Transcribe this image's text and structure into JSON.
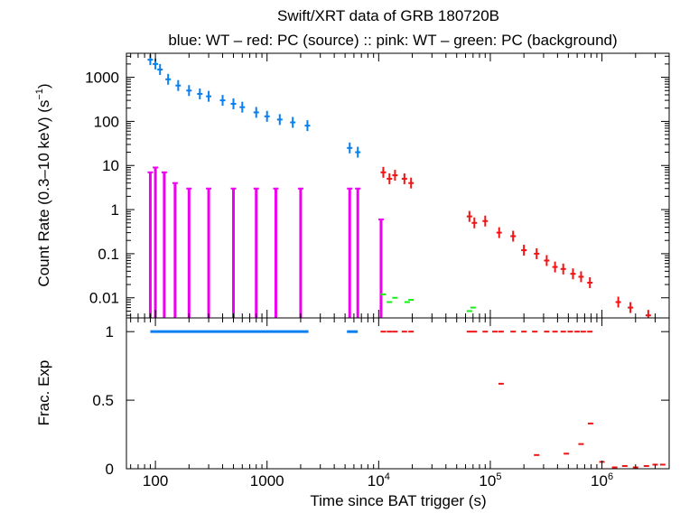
{
  "chart_data": [
    {
      "type": "scatter",
      "panel": "count-rate",
      "title": "Swift/XRT data of GRB 180720B",
      "subtitle": "blue: WT – red: PC (source) :: pink: WT – green: PC (background)",
      "ylabel": "Count Rate (0.3–10 keV) (s⁻¹)",
      "yscale": "log",
      "xscale": "log",
      "xlim": [
        55,
        4000000
      ],
      "ylim": [
        0.0035,
        3500
      ],
      "yticks": [
        {
          "v": 1000,
          "label": "1000"
        },
        {
          "v": 100,
          "label": "100"
        },
        {
          "v": 10,
          "label": "10"
        },
        {
          "v": 1,
          "label": "1"
        },
        {
          "v": 0.1,
          "label": "0.1"
        },
        {
          "v": 0.01,
          "label": "0.01"
        }
      ],
      "series": [
        {
          "color": "#0a7ff0",
          "mode": "WT",
          "role": "source",
          "x": [
            90,
            100,
            110,
            130,
            160,
            200,
            250,
            300,
            400,
            500,
            600,
            800,
            1000,
            1300,
            1700,
            2300,
            5500,
            6500
          ],
          "y": [
            2500,
            2000,
            1500,
            900,
            650,
            500,
            420,
            370,
            300,
            250,
            210,
            160,
            130,
            110,
            95,
            80,
            25,
            20
          ]
        },
        {
          "color": "#f000f0",
          "mode": "WT",
          "role": "background",
          "x": [
            90,
            100,
            120,
            150,
            200,
            300,
            500,
            800,
            1200,
            2000,
            5500,
            6500,
            10500
          ],
          "y": [
            7,
            9,
            7,
            4,
            3,
            3,
            3,
            3,
            3,
            3,
            3,
            3,
            0.6
          ]
        },
        {
          "color": "#f01414",
          "mode": "PC",
          "role": "source",
          "x": [
            11000,
            12500,
            14000,
            17000,
            19500,
            65000,
            72000,
            90000,
            120000,
            160000,
            200000,
            260000,
            320000,
            380000,
            450000,
            550000,
            650000,
            780000,
            1400000,
            1800000,
            2600000
          ],
          "y": [
            7,
            5,
            6,
            5,
            4,
            0.7,
            0.5,
            0.55,
            0.3,
            0.25,
            0.12,
            0.1,
            0.07,
            0.05,
            0.045,
            0.035,
            0.03,
            0.022,
            0.008,
            0.006,
            0.004
          ]
        },
        {
          "color": "#14f014",
          "mode": "PC",
          "role": "background",
          "x": [
            11000,
            12500,
            14000,
            18000,
            19500,
            65000,
            70000
          ],
          "y": [
            0.012,
            0.008,
            0.01,
            0.008,
            0.009,
            0.005,
            0.006
          ]
        }
      ]
    },
    {
      "type": "scatter",
      "panel": "fractional-exposure",
      "ylabel": "Frac. Exp",
      "xlabel": "Time since BAT trigger (s)",
      "xscale": "log",
      "xlim": [
        55,
        4000000
      ],
      "ylim": [
        0,
        1.1
      ],
      "yticks": [
        {
          "v": 1,
          "label": "1"
        },
        {
          "v": 0.5,
          "label": "0.5"
        },
        {
          "v": 0,
          "label": "0"
        }
      ],
      "xticks": [
        {
          "v": 100,
          "label": "100",
          "sup": ""
        },
        {
          "v": 1000,
          "label": "1000",
          "sup": ""
        },
        {
          "v": 10000,
          "label": "10",
          "sup": "4"
        },
        {
          "v": 100000,
          "label": "10",
          "sup": "5"
        },
        {
          "v": 1000000,
          "label": "10",
          "sup": "6"
        }
      ],
      "segments": [
        {
          "color": "#0a7ff0",
          "x0": 90,
          "x1": 2350,
          "y": 1.0
        },
        {
          "color": "#0a7ff0",
          "x0": 5200,
          "x1": 6500,
          "y": 1.0
        }
      ],
      "series": [
        {
          "color": "#f01414",
          "x": [
            11000,
            12500,
            14000,
            17000,
            19500,
            65000,
            72000,
            90000,
            110000,
            125000,
            160000,
            200000,
            250000,
            320000,
            380000,
            450000,
            520000,
            600000,
            680000,
            780000,
            125000,
            260000,
            480000,
            650000,
            790000,
            1000000,
            1300000,
            1600000,
            2000000,
            2500000,
            3000000,
            3500000
          ],
          "y": [
            1,
            1,
            1,
            1,
            1,
            1,
            1,
            1,
            1,
            1,
            1,
            1,
            1,
            1,
            1,
            1,
            1,
            1,
            1,
            1,
            0.62,
            0.1,
            0.11,
            0.18,
            0.33,
            0.05,
            0.01,
            0.02,
            0.01,
            0.02,
            0.03,
            0.03
          ]
        }
      ]
    }
  ],
  "axis_labels": {
    "top_ylabel_text": "Count Rate (0.3–10 keV) (s",
    "top_ylabel_sup": "−1",
    "top_ylabel_end": ")"
  }
}
